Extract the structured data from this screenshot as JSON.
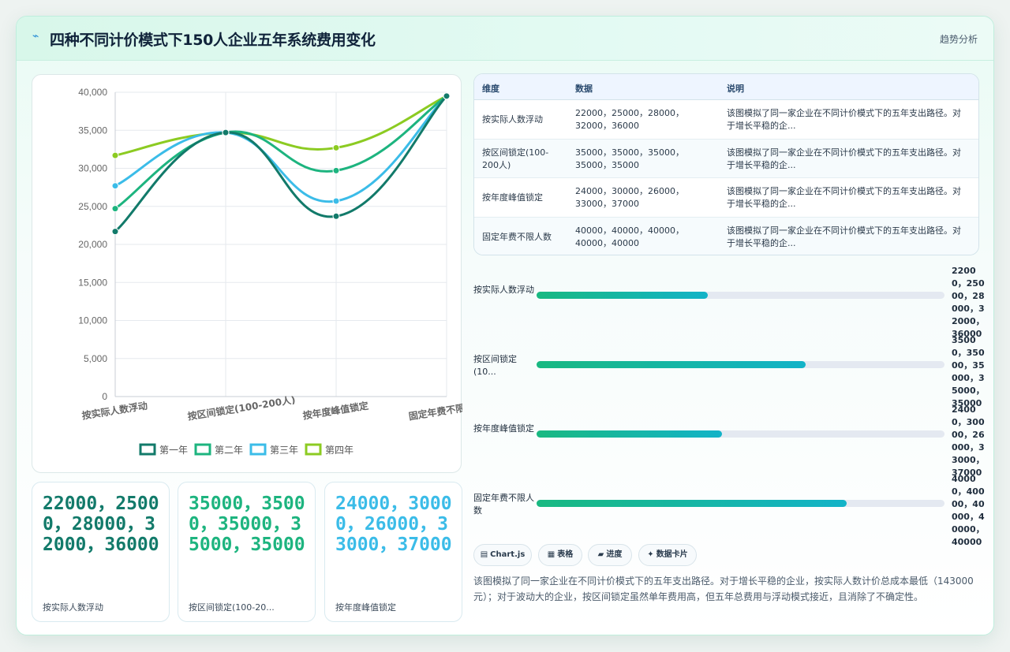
{
  "header": {
    "icon": "trend-icon",
    "title": "四种不同计价模式下150人企业五年系统费用变化",
    "tab": "趋势分析"
  },
  "chart_data": {
    "type": "line",
    "categories": [
      "按实际人数浮动",
      "按区间锁定(100-200人)",
      "按年度峰值锁定",
      "固定年费不限人数"
    ],
    "series": [
      {
        "name": "第一年",
        "values": [
          21700,
          34700,
          23700,
          39500
        ],
        "color": "#127a6a"
      },
      {
        "name": "第二年",
        "values": [
          24700,
          34700,
          29700,
          39500
        ],
        "color": "#1db47f"
      },
      {
        "name": "第三年",
        "values": [
          27700,
          34700,
          25700,
          39500
        ],
        "color": "#3bbce8"
      },
      {
        "name": "第四年",
        "values": [
          31700,
          34700,
          32700,
          39500
        ],
        "color": "#8ccb22"
      }
    ],
    "ylim": [
      0,
      40000
    ],
    "yticks": [
      "40,000",
      "35,000",
      "30,000",
      "25,000",
      "20,000",
      "15,000",
      "10,000",
      "5,000",
      "0"
    ],
    "grid": true,
    "legend": "bottom"
  },
  "stat_cards": [
    {
      "value": "22000，25000，28000，32000，36000",
      "label": "按实际人数浮动",
      "color": "#127a6a"
    },
    {
      "value": "35000，35000，35000，35000，35000",
      "label": "按区间锁定(100-20...",
      "color": "#1db47f"
    },
    {
      "value": "24000，30000，26000，33000，37000",
      "label": "按年度峰值锁定",
      "color": "#3bbce8"
    }
  ],
  "table": {
    "headers": [
      "维度",
      "数据",
      "说明"
    ],
    "rows": [
      {
        "dim": "按实际人数浮动",
        "data": "22000，25000，28000，32000，36000",
        "desc": "该图模拟了同一家企业在不同计价模式下的五年支出路径。对于增长平稳的企..."
      },
      {
        "dim": "按区间锁定(100-200人)",
        "data": "35000，35000，35000，35000，35000",
        "desc": "该图模拟了同一家企业在不同计价模式下的五年支出路径。对于增长平稳的企..."
      },
      {
        "dim": "按年度峰值锁定",
        "data": "24000，30000，26000，33000，37000",
        "desc": "该图模拟了同一家企业在不同计价模式下的五年支出路径。对于增长平稳的企..."
      },
      {
        "dim": "固定年费不限人数",
        "data": "40000，40000，40000，40000，40000",
        "desc": "该图模拟了同一家企业在不同计价模式下的五年支出路径。对于增长平稳的企..."
      }
    ]
  },
  "progress": [
    {
      "label": "按实际人数浮动",
      "value": "22000，25000，28000，32000，36000",
      "fraction": 0.42
    },
    {
      "label": "按区间锁定(10...",
      "value": "35000，35000，35000，35000，35000",
      "fraction": 0.66
    },
    {
      "label": "按年度峰值锁定",
      "value": "24000，30000，26000，33000，37000",
      "fraction": 0.455
    },
    {
      "label": "固定年费不限人数",
      "value": "40000，40000，40000，40000，40000",
      "fraction": 0.76
    }
  ],
  "chips": [
    {
      "icon": "chart-icon",
      "glyph": "▤",
      "label": "Chart.js"
    },
    {
      "icon": "table-icon",
      "glyph": "▦",
      "label": "表格"
    },
    {
      "icon": "progress-icon",
      "glyph": "▰",
      "label": "进度"
    },
    {
      "icon": "card-icon",
      "glyph": "✦",
      "label": "数据卡片"
    }
  ],
  "summary": "该图模拟了同一家企业在不同计价模式下的五年支出路径。对于增长平稳的企业，按实际人数计价总成本最低（143000元）；对于波动大的企业，按区间锁定虽然单年费用高，但五年总费用与浮动模式接近，且消除了不确定性。"
}
